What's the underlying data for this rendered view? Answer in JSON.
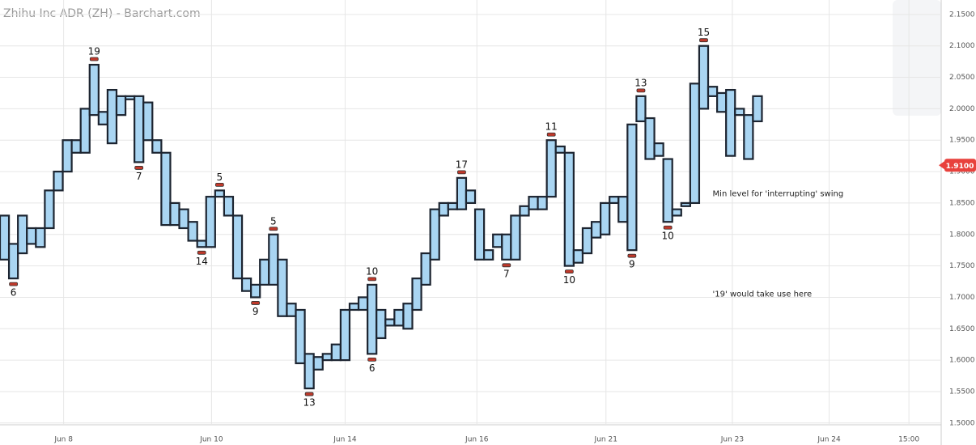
{
  "chart_data": {
    "type": "swing",
    "title": "Zhihu Inc ADR (ZH) - Barchart.com",
    "tops": [
      1.83,
      1.785,
      1.83,
      1.81,
      1.81,
      1.87,
      1.9,
      1.95,
      1.95,
      2.0,
      2.07,
      1.995,
      2.03,
      2.02,
      2.02,
      2.02,
      2.01,
      1.95,
      1.93,
      1.85,
      1.84,
      1.82,
      1.79,
      1.86,
      1.87,
      1.86,
      1.83,
      1.73,
      1.72,
      1.76,
      1.8,
      1.76,
      1.69,
      1.68,
      1.61,
      1.605,
      1.61,
      1.625,
      1.68,
      1.69,
      1.7,
      1.72,
      1.68,
      1.665,
      1.68,
      1.69,
      1.73,
      1.77,
      1.84,
      1.85,
      1.85,
      1.89,
      1.87,
      1.84,
      1.775,
      1.8,
      1.8,
      1.83,
      1.845,
      1.86,
      1.86,
      1.95,
      1.94,
      1.93,
      1.775,
      1.81,
      1.82,
      1.85,
      1.86,
      1.86,
      1.975,
      2.02,
      1.985,
      1.945,
      1.92,
      1.84,
      1.85,
      2.04,
      2.1,
      2.035,
      2.025,
      2.03,
      2.0,
      1.99,
      2.02
    ],
    "bottoms": [
      1.76,
      1.73,
      1.77,
      1.785,
      1.78,
      1.81,
      1.87,
      1.9,
      1.93,
      1.93,
      1.99,
      1.975,
      1.945,
      1.99,
      2.015,
      1.915,
      1.95,
      1.93,
      1.815,
      1.815,
      1.81,
      1.79,
      1.78,
      1.78,
      1.86,
      1.83,
      1.73,
      1.71,
      1.7,
      1.72,
      1.72,
      1.67,
      1.67,
      1.595,
      1.555,
      1.585,
      1.6,
      1.6,
      1.6,
      1.68,
      1.68,
      1.61,
      1.635,
      1.655,
      1.655,
      1.65,
      1.68,
      1.72,
      1.76,
      1.83,
      1.84,
      1.84,
      1.85,
      1.76,
      1.76,
      1.78,
      1.76,
      1.76,
      1.83,
      1.84,
      1.84,
      1.86,
      1.93,
      1.75,
      1.755,
      1.77,
      1.795,
      1.8,
      1.85,
      1.82,
      1.775,
      1.98,
      1.92,
      1.925,
      1.82,
      1.83,
      1.845,
      1.85,
      2.0,
      2.02,
      1.995,
      1.925,
      1.99,
      1.92,
      1.98
    ],
    "counts": [
      {
        "index": 1,
        "count": 6,
        "position": "low"
      },
      {
        "index": 10,
        "count": 19,
        "position": "high"
      },
      {
        "index": 15,
        "count": 7,
        "position": "low"
      },
      {
        "index": 22,
        "count": 14,
        "position": "low"
      },
      {
        "index": 24,
        "count": 5,
        "position": "high"
      },
      {
        "index": 28,
        "count": 9,
        "position": "low"
      },
      {
        "index": 30,
        "count": 5,
        "position": "high"
      },
      {
        "index": 34,
        "count": 13,
        "position": "low"
      },
      {
        "index": 41,
        "count": 10,
        "position": "high"
      },
      {
        "index": 41,
        "count": 6,
        "position": "low"
      },
      {
        "index": 51,
        "count": 17,
        "position": "high"
      },
      {
        "index": 56,
        "count": 7,
        "position": "low"
      },
      {
        "index": 61,
        "count": 11,
        "position": "high"
      },
      {
        "index": 63,
        "count": 10,
        "position": "low"
      },
      {
        "index": 70,
        "count": 9,
        "position": "low"
      },
      {
        "index": 71,
        "count": 13,
        "position": "high"
      },
      {
        "index": 74,
        "count": 10,
        "position": "low"
      },
      {
        "index": 78,
        "count": 15,
        "position": "high"
      }
    ],
    "annotations": [
      {
        "text": "Min level for 'interrupting' swing",
        "x": 79.0,
        "y": 1.865
      },
      {
        "text": "'19' would take use here",
        "x": 79.0,
        "y": 1.705
      }
    ],
    "last_price": {
      "value": 1.91,
      "label": "1.9100"
    },
    "box_color": "#a9d5f2",
    "edge_color": "#1c2430",
    "marker_color": "#c0392b",
    "xlim": [
      -0.5,
      104.5
    ],
    "ylim": [
      1.465,
      2.173
    ],
    "xticks": [
      {
        "value": 6.6,
        "label": "Jun 8"
      },
      {
        "value": 23.1,
        "label": "Jun 10"
      },
      {
        "value": 38.0,
        "label": "Jun 14"
      },
      {
        "value": 52.7,
        "label": "Jun 16"
      },
      {
        "value": 67.1,
        "label": "Jun 21"
      },
      {
        "value": 81.2,
        "label": "Jun 23"
      },
      {
        "value": 92.0,
        "label": "Jun 24"
      },
      {
        "value": 100.9,
        "label": "15:00"
      }
    ],
    "yticks": [
      {
        "value": 1.5,
        "label": "1.5000"
      },
      {
        "value": 1.55,
        "label": "1.5500"
      },
      {
        "value": 1.6,
        "label": "1.6000"
      },
      {
        "value": 1.65,
        "label": "1.6500"
      },
      {
        "value": 1.7,
        "label": "1.7000"
      },
      {
        "value": 1.75,
        "label": "1.7500"
      },
      {
        "value": 1.8,
        "label": "1.8000"
      },
      {
        "value": 1.85,
        "label": "1.8500"
      },
      {
        "value": 1.9,
        "label": "1.9000"
      },
      {
        "value": 1.95,
        "label": "1.9500"
      },
      {
        "value": 2.0,
        "label": "2.0000"
      },
      {
        "value": 2.05,
        "label": "2.0500"
      },
      {
        "value": 2.1,
        "label": "2.1000"
      },
      {
        "value": 2.15,
        "label": "2.1500"
      }
    ],
    "grid": true
  }
}
